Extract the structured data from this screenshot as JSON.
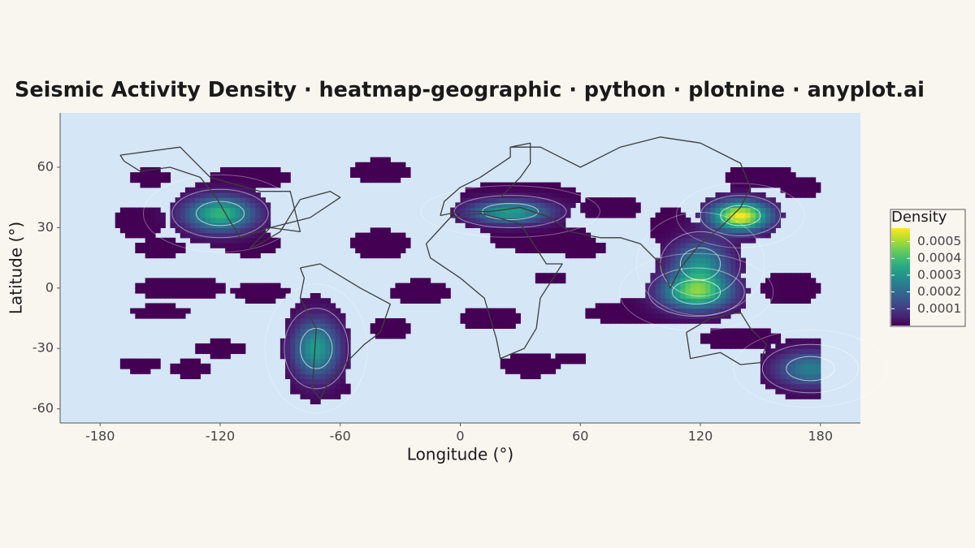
{
  "chart_data": {
    "type": "heatmap",
    "title": "Seismic Activity Density · heatmap-geographic · python · plotnine · anyplot.ai",
    "xlabel": "Longitude (°)",
    "ylabel": "Latitude (°)",
    "xlim": [
      -200,
      200
    ],
    "ylim": [
      -67,
      87
    ],
    "xticks": [
      -180,
      -120,
      -60,
      0,
      60,
      120,
      180
    ],
    "xtick_labels": [
      "-180",
      "-120",
      "-60",
      "0",
      "60",
      "120",
      "180"
    ],
    "yticks": [
      -60,
      -30,
      0,
      30,
      60
    ],
    "ytick_labels": [
      "-60",
      "-30",
      "0",
      "30",
      "60"
    ],
    "legend": {
      "title": "Density",
      "position": "right",
      "range": [
        0,
        0.00058
      ],
      "ticks": [
        0.0001,
        0.0002,
        0.0003,
        0.0004,
        0.0005
      ],
      "tick_labels": [
        "0.0001",
        "0.0002",
        "0.0003",
        "0.0004",
        "0.0005"
      ],
      "colormap": "viridis"
    },
    "density_threshold": 1.5e-05,
    "grid": false,
    "clusters": [
      {
        "lon": -120,
        "lat": 37,
        "peak": 0.00038,
        "sigma_lon": 12,
        "sigma_lat": 6
      },
      {
        "lon": 25,
        "lat": 38,
        "peak": 0.00033,
        "sigma_lon": 14,
        "sigma_lat": 4
      },
      {
        "lon": 140,
        "lat": 36,
        "peak": 0.00058,
        "sigma_lon": 10,
        "sigma_lat": 5
      },
      {
        "lon": 120,
        "lat": 12,
        "peak": 0.00028,
        "sigma_lon": 10,
        "sigma_lat": 8
      },
      {
        "lon": 118,
        "lat": -2,
        "peak": 0.00042,
        "sigma_lon": 12,
        "sigma_lat": 6
      },
      {
        "lon": -72,
        "lat": -30,
        "peak": 0.00032,
        "sigma_lon": 8,
        "sigma_lat": 10
      },
      {
        "lon": 175,
        "lat": -40,
        "peak": 0.00025,
        "sigma_lon": 12,
        "sigma_lat": 6
      }
    ],
    "background_blobs": [
      {
        "lon": -155,
        "lat": 55,
        "sigma_lon": 10,
        "sigma_lat": 4
      },
      {
        "lon": -105,
        "lat": 55,
        "sigma_lon": 20,
        "sigma_lat": 5
      },
      {
        "lon": -40,
        "lat": 58,
        "sigma_lon": 14,
        "sigma_lat": 6
      },
      {
        "lon": -160,
        "lat": 33,
        "sigma_lon": 12,
        "sigma_lat": 8
      },
      {
        "lon": -150,
        "lat": 20,
        "sigma_lon": 12,
        "sigma_lat": 5
      },
      {
        "lon": -105,
        "lat": 22,
        "sigma_lon": 14,
        "sigma_lat": 6
      },
      {
        "lon": -40,
        "lat": 22,
        "sigma_lon": 15,
        "sigma_lat": 7
      },
      {
        "lon": -140,
        "lat": 0,
        "sigma_lon": 22,
        "sigma_lat": 6
      },
      {
        "lon": -100,
        "lat": -2,
        "sigma_lon": 14,
        "sigma_lat": 5
      },
      {
        "lon": -20,
        "lat": -2,
        "sigma_lon": 14,
        "sigma_lat": 6
      },
      {
        "lon": -150,
        "lat": -12,
        "sigma_lon": 14,
        "sigma_lat": 4
      },
      {
        "lon": -120,
        "lat": -30,
        "sigma_lon": 14,
        "sigma_lat": 4
      },
      {
        "lon": -160,
        "lat": -38,
        "sigma_lon": 10,
        "sigma_lat": 4
      },
      {
        "lon": -135,
        "lat": -40,
        "sigma_lon": 10,
        "sigma_lat": 4
      },
      {
        "lon": -70,
        "lat": -50,
        "sigma_lon": 16,
        "sigma_lat": 5
      },
      {
        "lon": -35,
        "lat": -20,
        "sigma_lon": 10,
        "sigma_lat": 5
      },
      {
        "lon": 15,
        "lat": -15,
        "sigma_lon": 15,
        "sigma_lat": 6
      },
      {
        "lon": 35,
        "lat": -38,
        "sigma_lon": 14,
        "sigma_lat": 6
      },
      {
        "lon": 30,
        "lat": 45,
        "sigma_lon": 30,
        "sigma_lat": 8
      },
      {
        "lon": 40,
        "lat": 25,
        "sigma_lon": 25,
        "sigma_lat": 7
      },
      {
        "lon": 60,
        "lat": 20,
        "sigma_lon": 12,
        "sigma_lat": 5
      },
      {
        "lon": 75,
        "lat": 40,
        "sigma_lon": 15,
        "sigma_lat": 6
      },
      {
        "lon": 88,
        "lat": -12,
        "sigma_lon": 25,
        "sigma_lat": 6
      },
      {
        "lon": 105,
        "lat": 30,
        "sigma_lon": 10,
        "sigma_lat": 10
      },
      {
        "lon": 150,
        "lat": 55,
        "sigma_lon": 18,
        "sigma_lat": 6
      },
      {
        "lon": 170,
        "lat": 50,
        "sigma_lon": 10,
        "sigma_lat": 6
      },
      {
        "lon": 165,
        "lat": 0,
        "sigma_lon": 14,
        "sigma_lat": 8
      },
      {
        "lon": 140,
        "lat": -25,
        "sigma_lon": 20,
        "sigma_lat": 6
      },
      {
        "lon": 55,
        "lat": -35,
        "sigma_lon": 8,
        "sigma_lat": 3
      },
      {
        "lon": 45,
        "lat": 5,
        "sigma_lon": 8,
        "sigma_lat": 3
      }
    ],
    "outlines": [
      [
        [
          -170,
          66
        ],
        [
          -140,
          70
        ],
        [
          -125,
          55
        ],
        [
          -100,
          48
        ],
        [
          -85,
          48
        ],
        [
          -80,
          28
        ],
        [
          -95,
          30
        ],
        [
          -110,
          25
        ],
        [
          -115,
          33
        ],
        [
          -122,
          45
        ],
        [
          -130,
          55
        ],
        [
          -145,
          60
        ],
        [
          -160,
          58
        ],
        [
          -168,
          63
        ],
        [
          -170,
          66
        ]
      ],
      [
        [
          -95,
          30
        ],
        [
          -75,
          35
        ],
        [
          -60,
          45
        ],
        [
          -65,
          48
        ],
        [
          -80,
          44
        ],
        [
          -90,
          28
        ],
        [
          -100,
          22
        ],
        [
          -105,
          20
        ],
        [
          -95,
          30
        ]
      ],
      [
        [
          -80,
          10
        ],
        [
          -70,
          12
        ],
        [
          -50,
          0
        ],
        [
          -35,
          -8
        ],
        [
          -40,
          -22
        ],
        [
          -48,
          -28
        ],
        [
          -58,
          -38
        ],
        [
          -65,
          -45
        ],
        [
          -70,
          -55
        ],
        [
          -74,
          -50
        ],
        [
          -72,
          -20
        ],
        [
          -80,
          -5
        ],
        [
          -78,
          5
        ],
        [
          -80,
          10
        ]
      ],
      [
        [
          -15,
          15
        ],
        [
          -17,
          22
        ],
        [
          -5,
          35
        ],
        [
          10,
          37
        ],
        [
          30,
          32
        ],
        [
          43,
          12
        ],
        [
          51,
          12
        ],
        [
          40,
          -5
        ],
        [
          38,
          -20
        ],
        [
          32,
          -30
        ],
        [
          20,
          -35
        ],
        [
          18,
          -25
        ],
        [
          12,
          -5
        ],
        [
          0,
          5
        ],
        [
          -15,
          15
        ]
      ],
      [
        [
          -10,
          36
        ],
        [
          -8,
          43
        ],
        [
          0,
          50
        ],
        [
          10,
          55
        ],
        [
          25,
          65
        ],
        [
          25,
          70
        ],
        [
          40,
          70
        ],
        [
          50,
          65
        ],
        [
          60,
          60
        ],
        [
          80,
          70
        ],
        [
          100,
          75
        ],
        [
          120,
          72
        ],
        [
          140,
          62
        ],
        [
          145,
          50
        ],
        [
          140,
          40
        ],
        [
          130,
          30
        ],
        [
          120,
          22
        ],
        [
          110,
          10
        ],
        [
          105,
          0
        ],
        [
          100,
          12
        ],
        [
          90,
          22
        ],
        [
          80,
          25
        ],
        [
          70,
          25
        ],
        [
          55,
          28
        ],
        [
          45,
          35
        ],
        [
          30,
          40
        ],
        [
          15,
          38
        ],
        [
          0,
          38
        ],
        [
          -10,
          36
        ]
      ],
      [
        [
          113,
          -22
        ],
        [
          125,
          -15
        ],
        [
          140,
          -12
        ],
        [
          145,
          -20
        ],
        [
          153,
          -28
        ],
        [
          150,
          -37
        ],
        [
          140,
          -38
        ],
        [
          130,
          -32
        ],
        [
          115,
          -35
        ],
        [
          113,
          -22
        ]
      ],
      [
        [
          25,
          70
        ],
        [
          35,
          72
        ],
        [
          35,
          62
        ],
        [
          30,
          55
        ],
        [
          25,
          50
        ],
        [
          20,
          45
        ]
      ]
    ]
  }
}
